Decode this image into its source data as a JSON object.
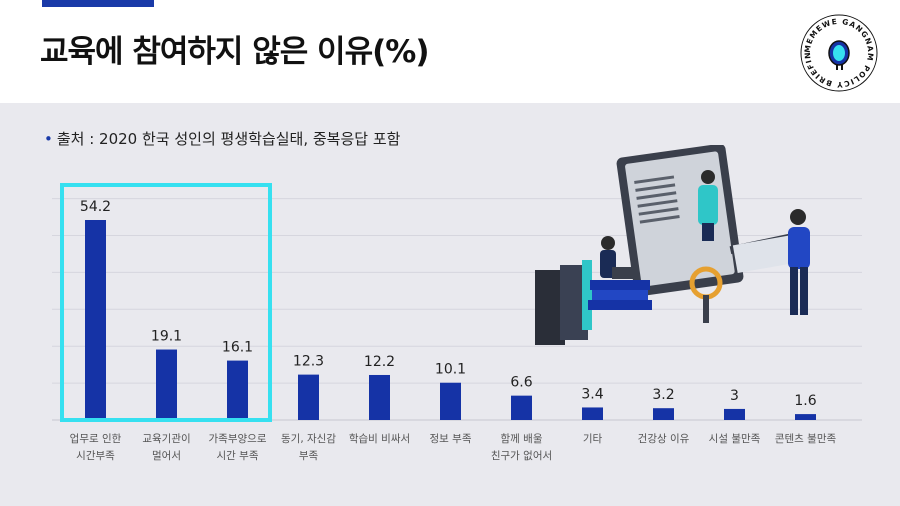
{
  "title": "교육에 참여하지 않은 이유(%)",
  "note": "출처 : 2020 한국 성인의 평생학습실태, 중복응답 포함",
  "note_bullet": "•",
  "badge_text": "MEMEWE GANGNAM POLICY BRIEFING",
  "colors": {
    "bar": "#1533a6",
    "highlight": "#36e0f0",
    "accent": "#1a3aa8"
  },
  "chart_data": {
    "type": "bar",
    "categories": [
      [
        "업무로 인한",
        "시간부족"
      ],
      [
        "교육기관이",
        "멀어서"
      ],
      [
        "가족부양으로",
        "시간 부족"
      ],
      [
        "동기, 자신감",
        "부족"
      ],
      [
        "학습비 비싸서"
      ],
      [
        "정보 부족"
      ],
      [
        "함께 배울",
        "친구가 없어서"
      ],
      [
        "기타"
      ],
      [
        "건강상 이유"
      ],
      [
        "시설 불만족"
      ],
      [
        "콘텐츠 불만족"
      ]
    ],
    "values": [
      54.2,
      19.1,
      16.1,
      12.3,
      12.2,
      10.1,
      6.6,
      3.4,
      3.2,
      3,
      1.6
    ],
    "value_labels": [
      "54.2",
      "19.1",
      "16.1",
      "12.3",
      "12.2",
      "10.1",
      "6.6",
      "3.4",
      "3.2",
      "3",
      "1.6"
    ],
    "highlighted": [
      0,
      1,
      2
    ],
    "ylim": [
      0,
      60
    ],
    "grid": true
  }
}
